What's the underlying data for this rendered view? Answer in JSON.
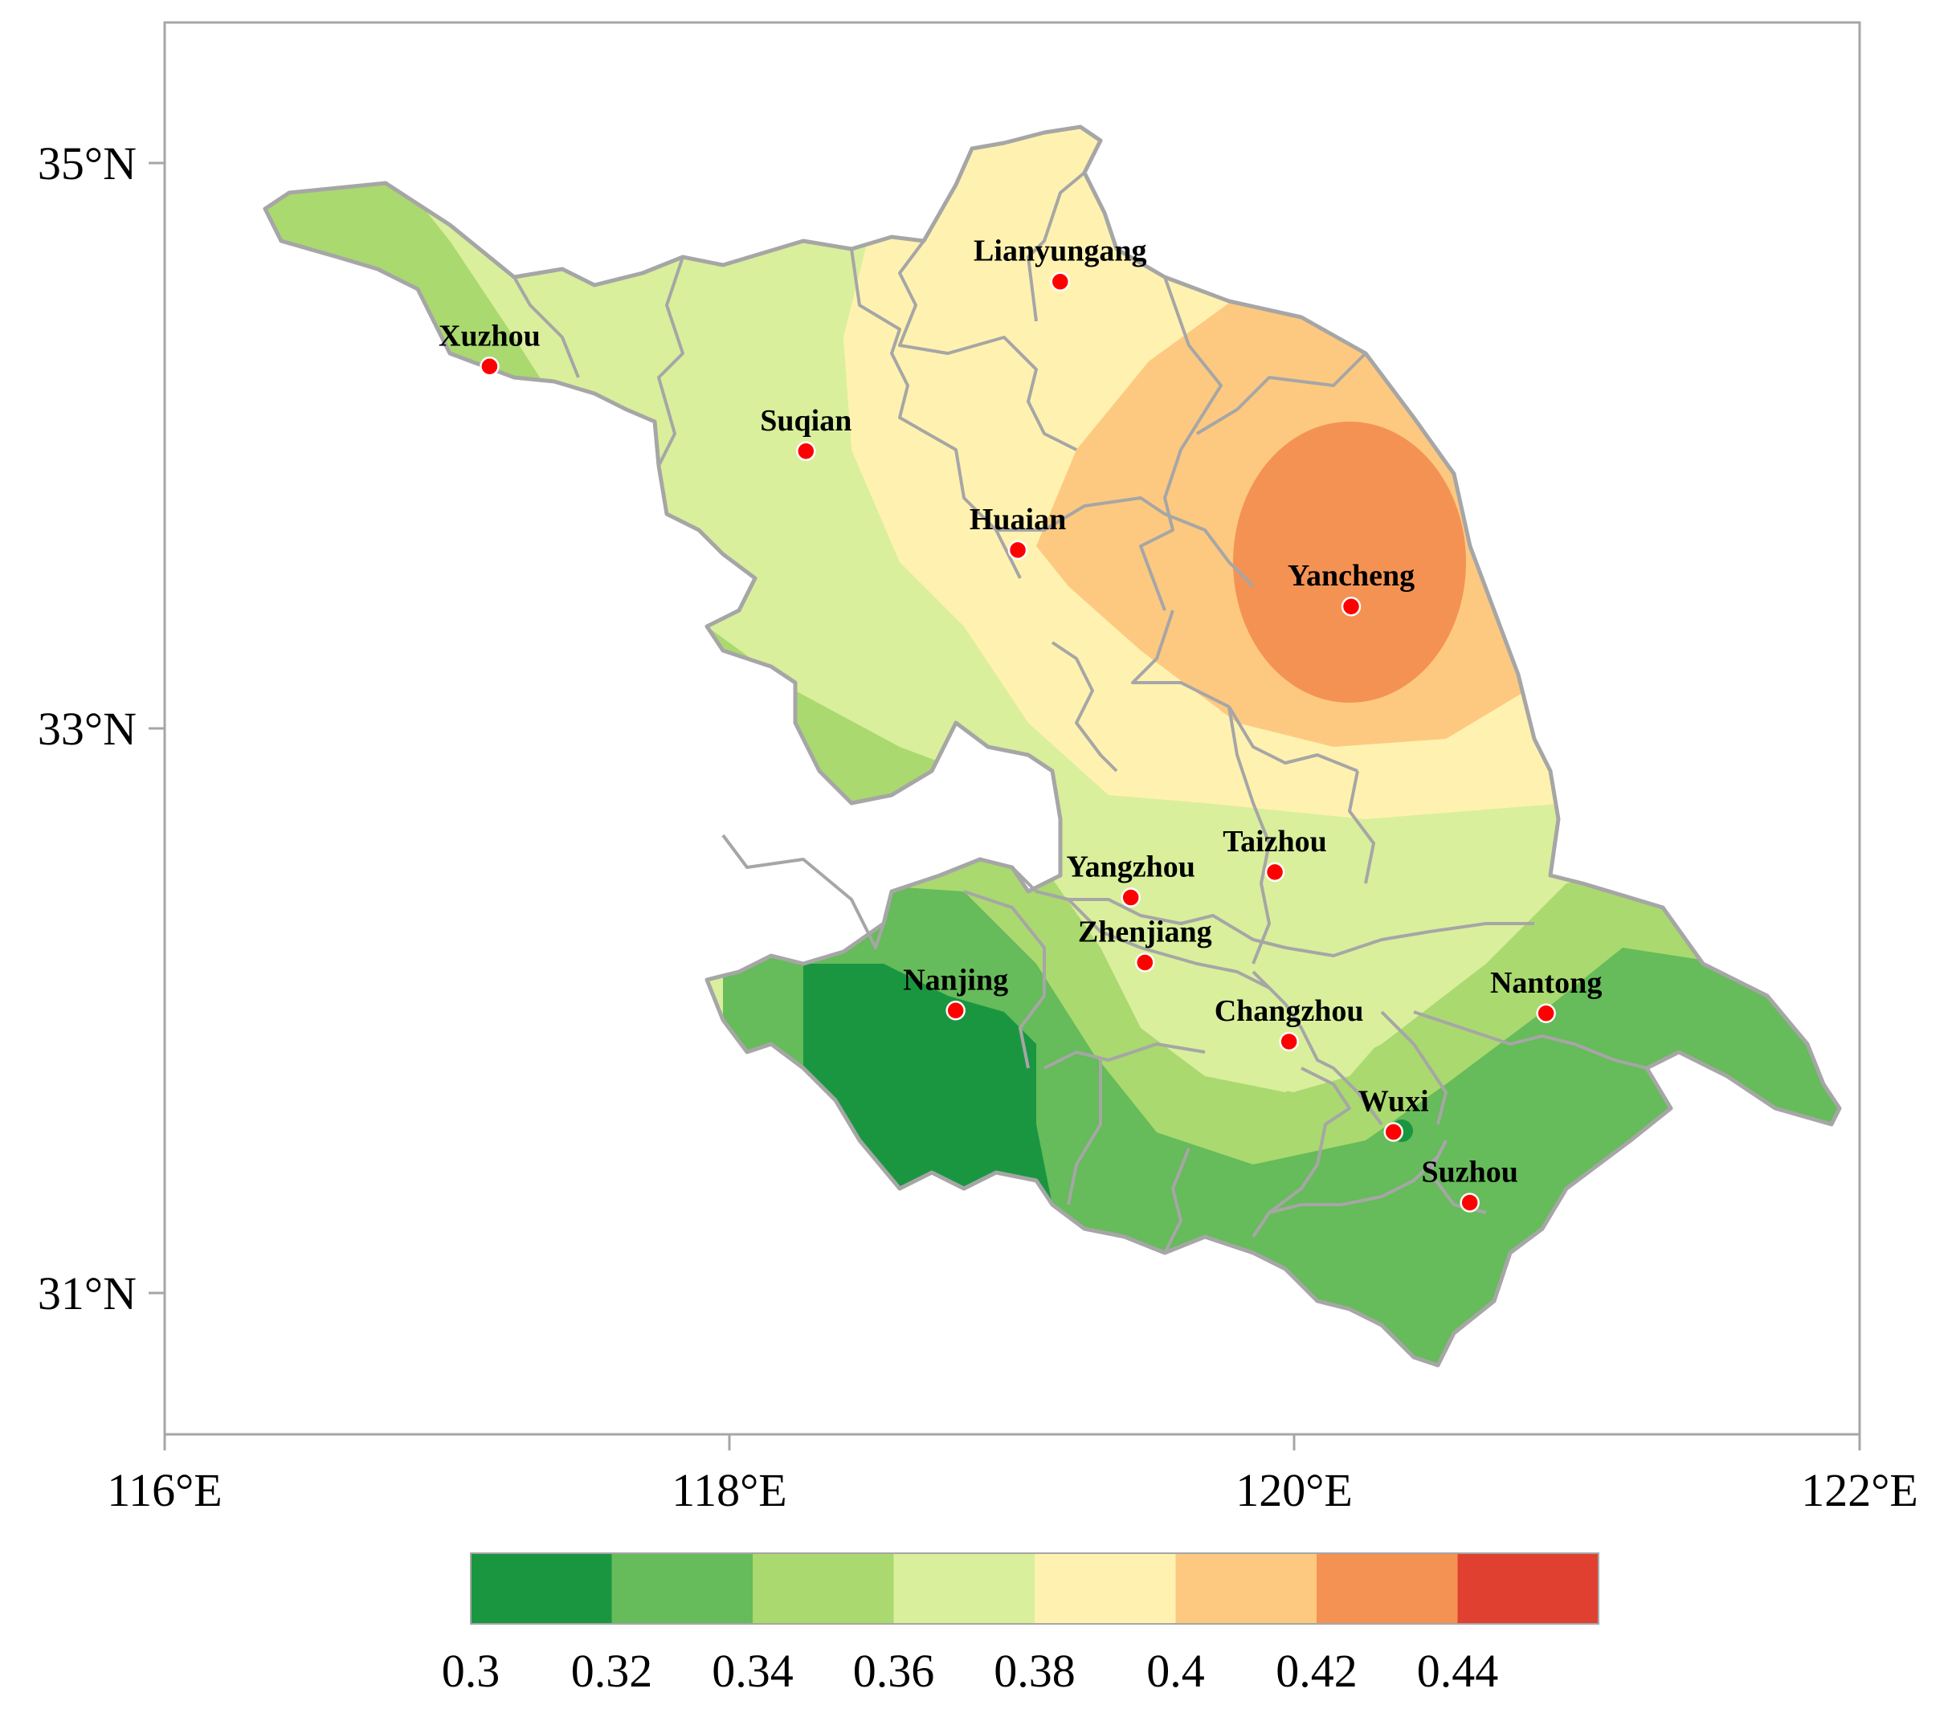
{
  "axes": {
    "x_ticks": [
      "116°E",
      "118°E",
      "120°E",
      "122°E"
    ],
    "y_ticks": [
      "35°N",
      "33°N",
      "31°N"
    ],
    "lon_range": [
      116,
      122
    ],
    "lat_range": [
      30.5,
      35.5
    ]
  },
  "colorbar": {
    "labels": [
      "0.3",
      "0.32",
      "0.34",
      "0.36",
      "0.38",
      "0.4",
      "0.42",
      "0.44"
    ],
    "colors": [
      "#1a9641",
      "#66bb5a",
      "#aad96f",
      "#d9ef9c",
      "#fff2b0",
      "#fdc980",
      "#f49254",
      "#e04030"
    ]
  },
  "cities": [
    {
      "name": "Lianyungang",
      "lon": 119.17,
      "lat": 34.58
    },
    {
      "name": "Xuzhou",
      "lon": 117.15,
      "lat": 34.28
    },
    {
      "name": "Suqian",
      "lon": 118.27,
      "lat": 33.98
    },
    {
      "name": "Huaian",
      "lon": 119.02,
      "lat": 33.63
    },
    {
      "name": "Yancheng",
      "lon": 120.2,
      "lat": 33.43
    },
    {
      "name": "Taizhou",
      "lon": 119.93,
      "lat": 32.49
    },
    {
      "name": "Yangzhou",
      "lon": 119.42,
      "lat": 32.4
    },
    {
      "name": "Zhenjiang",
      "lon": 119.47,
      "lat": 32.17
    },
    {
      "name": "Nanjing",
      "lon": 118.8,
      "lat": 32.0
    },
    {
      "name": "Nantong",
      "lon": 120.89,
      "lat": 31.99
    },
    {
      "name": "Changzhou",
      "lon": 119.98,
      "lat": 31.89
    },
    {
      "name": "Wuxi",
      "lon": 120.35,
      "lat": 31.57
    },
    {
      "name": "Suzhou",
      "lon": 120.62,
      "lat": 31.32
    }
  ]
}
